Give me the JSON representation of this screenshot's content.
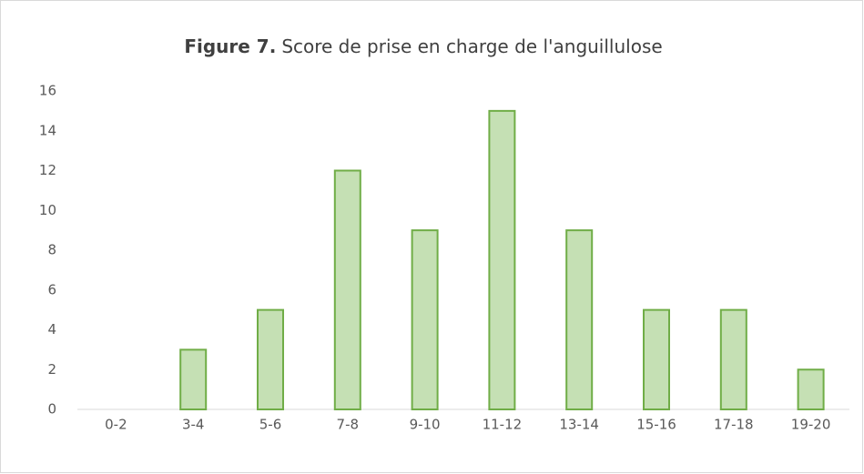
{
  "chart_data": {
    "type": "bar",
    "title_label": "Figure 7.",
    "title": "Score de prise en charge de l'anguillulose",
    "categories": [
      "0-2",
      "3-4",
      "5-6",
      "7-8",
      "9-10",
      "11-12",
      "13-14",
      "15-16",
      "17-18",
      "19-20"
    ],
    "values": [
      0,
      3,
      5,
      12,
      9,
      15,
      9,
      5,
      5,
      2
    ],
    "color": "#c5e0b4",
    "edge_color": "#70ad47",
    "ylim": [
      0,
      16
    ],
    "yticks": [
      0,
      2,
      4,
      6,
      8,
      10,
      12,
      14,
      16
    ],
    "grid": false
  }
}
